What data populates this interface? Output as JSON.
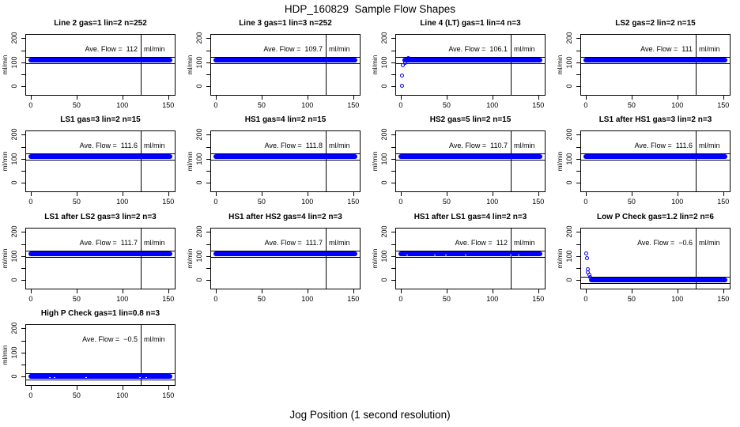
{
  "figure": {
    "title": "HDP_160829  Sample Flow Shapes",
    "xlabel": "Jog Position (1 second resolution)"
  },
  "chart_data": {
    "type": "scatter",
    "title": "HDP_160829  Sample Flow Shapes",
    "xlabel": "Jog Position (1 second resolution)",
    "ylabel": "ml/min",
    "x_ticks_labeled": [
      0,
      50,
      100,
      150
    ],
    "y_ticks_all": [
      0,
      50,
      100,
      150,
      200
    ],
    "y_ticks_labeled": [
      0,
      100,
      200
    ],
    "xlim": [
      -6,
      158
    ],
    "ylim": [
      -39,
      218
    ],
    "grid": false,
    "marker_color": "#0000ff",
    "line_color": "#000000",
    "vline_x": 120,
    "panels": [
      {
        "title": "Line 2 gas=1 lin=2 n=252",
        "ave_label": "Ave. Flow =",
        "ave_value": "112",
        "unit": "ml/min",
        "band": {
          "y": 110,
          "x_start": 0,
          "x_end": 152
        },
        "ref_lines": [
          124,
          96
        ],
        "outliers": [],
        "specks": []
      },
      {
        "title": "Line 3 gas=1 lin=3 n=252",
        "ave_label": "Ave. Flow =",
        "ave_value": "109.7",
        "unit": "ml/min",
        "band": {
          "y": 110,
          "x_start": 0,
          "x_end": 152
        },
        "ref_lines": [
          124,
          96
        ],
        "outliers": [],
        "specks": []
      },
      {
        "title": "Line 4 (LT) gas=1 lin=4 n=3",
        "ave_label": "Ave. Flow =",
        "ave_value": "106.1",
        "unit": "ml/min",
        "band": {
          "y": 110,
          "x_start": 4,
          "x_end": 152
        },
        "ref_lines": [
          124,
          96
        ],
        "outliers": [
          [
            2,
            0
          ],
          [
            2,
            45
          ],
          [
            3,
            85
          ],
          [
            5,
            97
          ],
          [
            9,
            116
          ]
        ],
        "specks": []
      },
      {
        "title": "LS2 gas=2 lin=2 n=15",
        "ave_label": "Ave. Flow =",
        "ave_value": "111",
        "unit": "ml/min",
        "band": {
          "y": 110,
          "x_start": 0,
          "x_end": 152
        },
        "ref_lines": [
          124,
          96
        ],
        "outliers": [],
        "specks": []
      },
      {
        "title": "LS1 gas=3 lin=2 n=15",
        "ave_label": "Ave. Flow =",
        "ave_value": "111.6",
        "unit": "ml/min",
        "band": {
          "y": 110,
          "x_start": 0,
          "x_end": 152
        },
        "ref_lines": [
          124,
          96
        ],
        "outliers": [],
        "specks": []
      },
      {
        "title": "HS1 gas=4 lin=2 n=15",
        "ave_label": "Ave. Flow =",
        "ave_value": "111.8",
        "unit": "ml/min",
        "band": {
          "y": 110,
          "x_start": 0,
          "x_end": 152
        },
        "ref_lines": [
          124,
          96
        ],
        "outliers": [],
        "specks": []
      },
      {
        "title": "HS2 gas=5 lin=2 n=15",
        "ave_label": "Ave. Flow =",
        "ave_value": "110.7",
        "unit": "ml/min",
        "band": {
          "y": 110,
          "x_start": 0,
          "x_end": 152
        },
        "ref_lines": [
          124,
          96
        ],
        "outliers": [],
        "specks": []
      },
      {
        "title": "LS1 after HS1 gas=3 lin=2 n=3",
        "ave_label": "Ave. Flow =",
        "ave_value": "111.6",
        "unit": "ml/min",
        "band": {
          "y": 110,
          "x_start": 0,
          "x_end": 152
        },
        "ref_lines": [
          124,
          96
        ],
        "outliers": [],
        "specks": []
      },
      {
        "title": "LS1 after LS2 gas=3 lin=2 n=3",
        "ave_label": "Ave. Flow =",
        "ave_value": "111.7",
        "unit": "ml/min",
        "band": {
          "y": 110,
          "x_start": 0,
          "x_end": 152
        },
        "ref_lines": [
          124,
          96
        ],
        "outliers": [],
        "specks": []
      },
      {
        "title": "HS1 after HS2 gas=4 lin=2 n=3",
        "ave_label": "Ave. Flow =",
        "ave_value": "111.7",
        "unit": "ml/min",
        "band": {
          "y": 110,
          "x_start": 0,
          "x_end": 152
        },
        "ref_lines": [
          124,
          96
        ],
        "outliers": [],
        "specks": []
      },
      {
        "title": "HS1 after LS1 gas=4 lin=2 n=3",
        "ave_label": "Ave. Flow =",
        "ave_value": "112",
        "unit": "ml/min",
        "band": {
          "y": 110,
          "x_start": 0,
          "x_end": 152
        },
        "ref_lines": [
          124,
          96
        ],
        "outliers": [],
        "specks": [
          6,
          36,
          48,
          70,
          119,
          128
        ]
      },
      {
        "title": "Low P Check gas=1.2 lin=2 n=6",
        "ave_label": "Ave. Flow =",
        "ave_value": "−0.6",
        "unit": "ml/min",
        "band": {
          "y": 0,
          "x_start": 6,
          "x_end": 152
        },
        "ref_lines": [
          13,
          -12
        ],
        "outliers": [
          [
            1,
            110
          ],
          [
            2,
            88
          ],
          [
            3,
            45
          ],
          [
            3,
            30
          ],
          [
            4,
            20
          ],
          [
            5,
            10
          ]
        ],
        "specks": []
      },
      {
        "title": "High P Check gas=1 lin=0.8 n=3",
        "ave_label": "Ave. Flow =",
        "ave_value": "−0.5",
        "unit": "ml/min",
        "band": {
          "y": 0,
          "x_start": 0,
          "x_end": 152
        },
        "ref_lines": [
          13,
          -12
        ],
        "outliers": [],
        "specks": [
          20,
          25,
          60,
          118,
          125
        ]
      }
    ]
  }
}
